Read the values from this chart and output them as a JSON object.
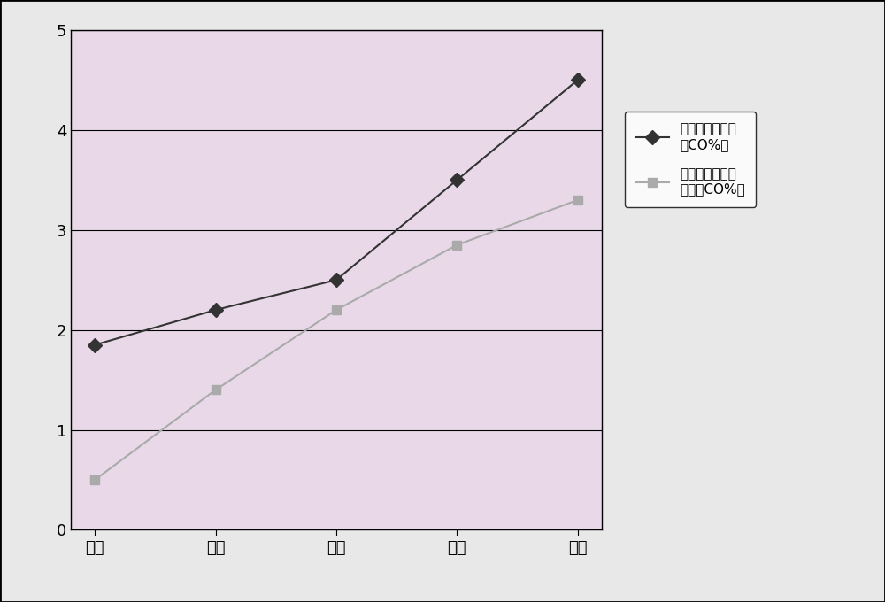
{
  "categories": [
    "一区",
    "二区",
    "三区",
    "四区",
    "五区"
  ],
  "series1": {
    "values": [
      1.85,
      2.2,
      2.5,
      3.5,
      4.5
    ],
    "label1": "原各区气氛设定",
    "label2": "（CO%）",
    "color": "#333333",
    "marker": "D",
    "markersize": 8,
    "linewidth": 1.5,
    "linestyle": "-"
  },
  "series2": {
    "values": [
      0.5,
      1.4,
      2.2,
      2.85,
      3.3
    ],
    "label1": "改进后各区气氛",
    "label2": "设定（CO%）",
    "color": "#aaaaaa",
    "marker": "s",
    "markersize": 7,
    "linewidth": 1.5,
    "linestyle": "-"
  },
  "ylim": [
    0,
    5
  ],
  "yticks": [
    0,
    1,
    2,
    3,
    4,
    5
  ],
  "plot_bg_color": "#e8d8e8",
  "figure_bg_color": "#e8e8e8",
  "grid_color": "#000000",
  "grid_linewidth": 0.8,
  "tick_fontsize": 13,
  "legend_fontsize": 11
}
